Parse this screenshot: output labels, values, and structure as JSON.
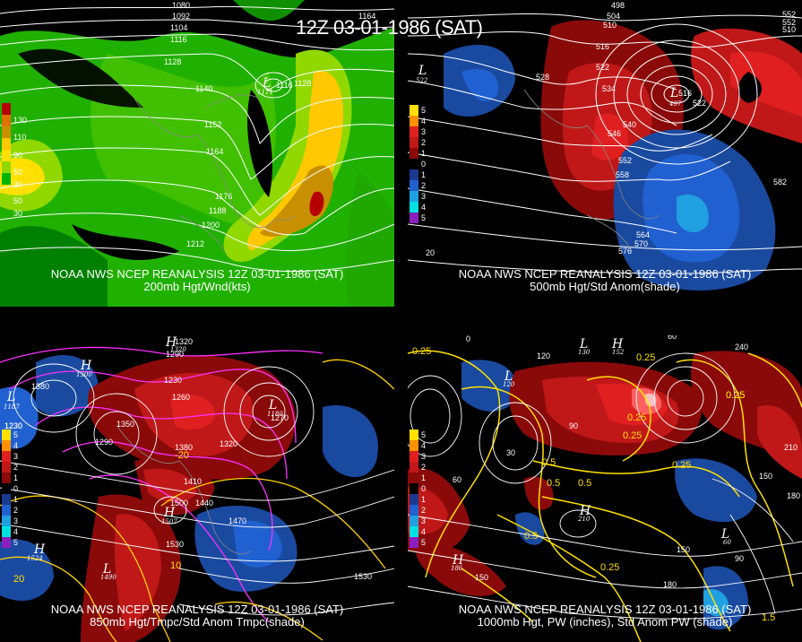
{
  "title": "12Z 03-01-1986 (SAT)",
  "panels": [
    {
      "id": "p200",
      "caption1": "NOAA NWS NCEP REANALYSIS 12Z 03-01-1986 (SAT)",
      "caption2": "200mb Hgt/Wnd(kts)",
      "legend": [
        {
          "color": "#b40000",
          "label": "130"
        },
        {
          "color": "#e07000",
          "label": "110"
        },
        {
          "color": "#c89000",
          "label": "90"
        },
        {
          "color": "#ffc800",
          "label": "50"
        },
        {
          "color": "#ffe000",
          "label": "30"
        },
        {
          "color": "#90d800",
          "label": "50"
        },
        {
          "color": "#00b400",
          "label": "30"
        }
      ],
      "contour_labels": [
        "1080",
        "1092",
        "1104",
        "1116",
        "1128",
        "1140",
        "1152",
        "1164",
        "1176",
        "1188",
        "1200",
        "1212",
        "1116",
        "1128",
        "1164"
      ],
      "lows": [
        {
          "letter": "L",
          "value": "1111"
        }
      ]
    },
    {
      "id": "p500",
      "caption1": "NOAA NWS NCEP REANALYSIS 12Z 03-01-1986 (SAT)",
      "caption2": "500mb Hgt/Std Anom(shade)",
      "legend": [
        {
          "color": "#ffe000",
          "label": "5"
        },
        {
          "color": "#ff9000",
          "label": "4"
        },
        {
          "color": "#e02020",
          "label": "3"
        },
        {
          "color": "#c01818",
          "label": "2"
        },
        {
          "color": "#8a0a0a",
          "label": "1"
        },
        {
          "color": "#000000",
          "label": "0"
        },
        {
          "color": "#1a3a90",
          "label": "1"
        },
        {
          "color": "#2060d0",
          "label": "2"
        },
        {
          "color": "#20a0e0",
          "label": "3"
        },
        {
          "color": "#00e0e0",
          "label": "4"
        },
        {
          "color": "#8a20c0",
          "label": "5"
        }
      ],
      "contour_labels": [
        "498",
        "504",
        "510",
        "516",
        "522",
        "528",
        "534",
        "540",
        "546",
        "552",
        "558",
        "564",
        "570",
        "576",
        "582",
        "510",
        "516",
        "522",
        "552",
        "552",
        "20"
      ],
      "lows": [
        {
          "letter": "L",
          "value": "522"
        },
        {
          "letter": "L",
          "value": "497"
        }
      ]
    },
    {
      "id": "p850",
      "caption1": "NOAA NWS NCEP REANALYSIS 12Z 03-01-1986 (SAT)",
      "caption2": "850mb Hgt/Tmpc/Std Anom Tmpc(shade)",
      "legend": [
        {
          "color": "#ffe000",
          "label": "5"
        },
        {
          "color": "#ff9000",
          "label": "4"
        },
        {
          "color": "#e02020",
          "label": "3"
        },
        {
          "color": "#c01818",
          "label": "2"
        },
        {
          "color": "#8a0a0a",
          "label": "1"
        },
        {
          "color": "#000000",
          "label": "0"
        },
        {
          "color": "#1a3a90",
          "label": "1"
        },
        {
          "color": "#2060d0",
          "label": "2"
        },
        {
          "color": "#20a0e0",
          "label": "3"
        },
        {
          "color": "#00e0e0",
          "label": "4"
        },
        {
          "color": "#8a20c0",
          "label": "5"
        }
      ],
      "contour_labels": [
        "1230",
        "1290",
        "1320",
        "1380",
        "1350",
        "1290",
        "1230",
        "1260",
        "1380",
        "1320",
        "1270",
        "1410",
        "1440",
        "1500",
        "1470",
        "1530",
        "1530",
        "1230",
        "10",
        "20",
        "-20"
      ],
      "lows": [
        {
          "letter": "H",
          "value": "1320"
        },
        {
          "letter": "H",
          "value": "1300"
        },
        {
          "letter": "L",
          "value": "1187"
        },
        {
          "letter": "L",
          "value": "1180"
        },
        {
          "letter": "L",
          "value": "1490"
        },
        {
          "letter": "H",
          "value": "1524"
        },
        {
          "letter": "H",
          "value": "1507"
        }
      ]
    },
    {
      "id": "p1000",
      "caption1": "NOAA NWS NCEP REANALYSIS 12Z 03-01-1986 (SAT)",
      "caption2": "1000mb Hgt, PW (inches), Std Anom PW (shade)",
      "legend": [
        {
          "color": "#ffe000",
          "label": "5"
        },
        {
          "color": "#ff9000",
          "label": "4"
        },
        {
          "color": "#e02020",
          "label": "3"
        },
        {
          "color": "#c01818",
          "label": "2"
        },
        {
          "color": "#8a0a0a",
          "label": "1"
        },
        {
          "color": "#000000",
          "label": "0"
        },
        {
          "color": "#1a3a90",
          "label": "1"
        },
        {
          "color": "#2060d0",
          "label": "2"
        },
        {
          "color": "#20a0e0",
          "label": "3"
        },
        {
          "color": "#00e0e0",
          "label": "4"
        },
        {
          "color": "#8a20c0",
          "label": "5"
        }
      ],
      "contour_labels": [
        "0",
        "60",
        "120",
        "30",
        "90",
        "240",
        "150",
        "180",
        "150",
        "60",
        "90",
        "180",
        "210",
        "150"
      ],
      "pw_labels": [
        "0.25",
        "0.25",
        "0.25",
        "0.25",
        "0.5",
        "0.5",
        "0.5",
        "0.25",
        "0.25",
        "0.25",
        "0.5",
        "0.25",
        "1.5"
      ],
      "lows": [
        {
          "letter": "H",
          "value": "152"
        },
        {
          "letter": "L",
          "value": "130"
        },
        {
          "letter": "L",
          "value": "120"
        },
        {
          "letter": "H",
          "value": "210"
        },
        {
          "letter": "L",
          "value": "60"
        },
        {
          "letter": "H",
          "value": "186"
        }
      ]
    }
  ]
}
